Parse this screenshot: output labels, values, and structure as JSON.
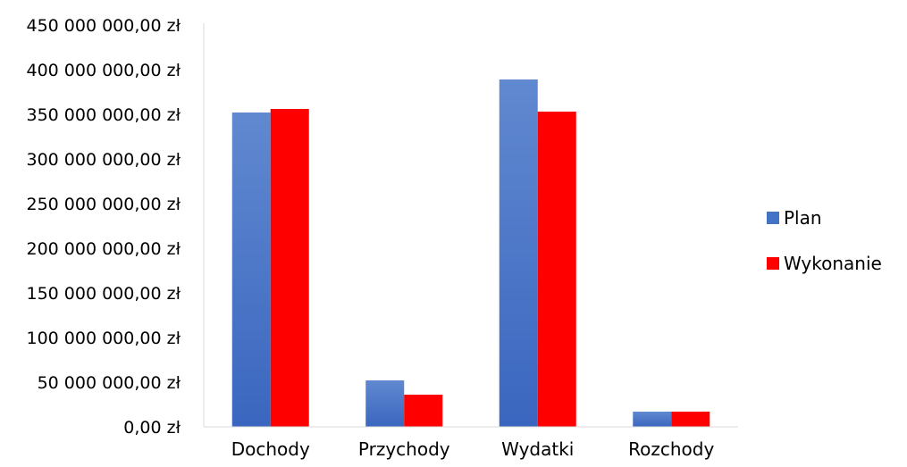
{
  "chart_data": {
    "type": "bar",
    "categories": [
      "Dochody",
      "Przychody",
      "Wydatki",
      "Rozchody"
    ],
    "series": [
      {
        "name": "Plan",
        "color": "#4472C4",
        "values": [
          352000000,
          52000000,
          389000000,
          17000000
        ]
      },
      {
        "name": "Wykonanie",
        "color": "#FF0000",
        "values": [
          356000000,
          36000000,
          353000000,
          17000000
        ]
      }
    ],
    "y_ticks": [
      "0,00 zł",
      "50 000 000,00 zł",
      "100 000 000,00 zł",
      "150 000 000,00 zł",
      "200 000 000,00 zł",
      "250 000 000,00 zł",
      "300 000 000,00 zł",
      "350 000 000,00 zł",
      "400 000 000,00 zł",
      "450 000 000,00 zł"
    ],
    "ylim": [
      0,
      450000000
    ],
    "ytick_step": 50000000,
    "grid": false,
    "legend_position": "right",
    "title": "",
    "xlabel": "",
    "ylabel": ""
  }
}
